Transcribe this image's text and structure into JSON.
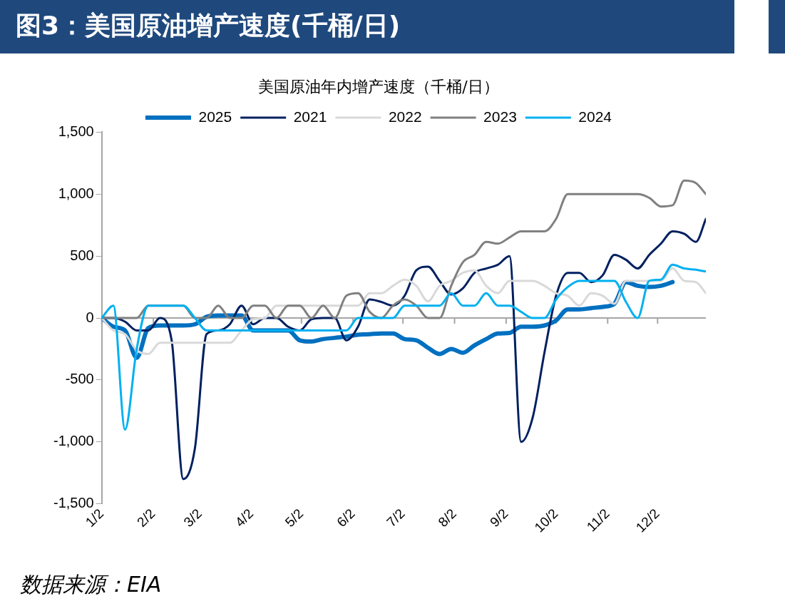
{
  "chart_data": {
    "type": "line",
    "title": "图3：美国原油增产速度(千桶/日)",
    "subtitle": "美国原油年内增产速度（千桶/日）",
    "x": [
      "--01-02",
      "--01-09",
      "--01-16",
      "--01-23",
      "--01-30",
      "--02-06",
      "--02-13",
      "--02-20",
      "--02-27",
      "--03-06",
      "--03-13",
      "--03-20",
      "--03-27",
      "--04-03",
      "--04-10",
      "--04-17",
      "--04-24",
      "--05-01",
      "--05-08",
      "--05-15",
      "--05-22",
      "--05-29",
      "--06-05",
      "--06-12",
      "--06-19",
      "--06-26",
      "--07-03",
      "--07-10",
      "--07-17",
      "--07-24",
      "--07-31",
      "--08-07",
      "--08-14",
      "--08-21",
      "--08-28",
      "--09-04",
      "--09-11",
      "--09-18",
      "--09-25",
      "--10-02",
      "--10-09",
      "--10-16",
      "--10-23",
      "--10-30",
      "--11-06",
      "--11-13",
      "--11-20",
      "--11-27",
      "--12-04",
      "--12-11",
      "--12-18",
      "--12-25",
      "--12-31"
    ],
    "series": [
      {
        "name": "2025",
        "color": "#0070c0",
        "values": [
          0,
          -70,
          -100,
          -320,
          -80,
          -60,
          -60,
          -60,
          -50,
          10,
          20,
          20,
          20,
          -100,
          -100,
          -100,
          -100,
          -180,
          -190,
          -170,
          -160,
          -150,
          -135,
          -130,
          -125,
          -125,
          -170,
          -180,
          -240,
          -290,
          -250,
          -280,
          -220,
          -170,
          -125,
          -120,
          -70,
          -70,
          -60,
          -20,
          70,
          70,
          80,
          90,
          115,
          290,
          260,
          250,
          260,
          290,
          null,
          null,
          null
        ]
      },
      {
        "name": "2021",
        "color": "#002060",
        "values": [
          0,
          0,
          -30,
          -100,
          -100,
          0,
          -180,
          -1300,
          -1050,
          -130,
          -100,
          -50,
          100,
          -50,
          0,
          0,
          -70,
          -100,
          -10,
          0,
          0,
          -180,
          -70,
          150,
          130,
          100,
          180,
          385,
          415,
          300,
          190,
          240,
          365,
          400,
          430,
          500,
          -1000,
          -800,
          -280,
          180,
          365,
          365,
          290,
          345,
          510,
          470,
          400,
          510,
          600,
          700,
          680,
          615,
          800
        ]
      },
      {
        "name": "2022",
        "color": "#d9d9d9",
        "values": [
          0,
          -100,
          -130,
          -260,
          -290,
          -200,
          -200,
          -200,
          -200,
          -200,
          -200,
          -200,
          -100,
          -10,
          0,
          100,
          100,
          100,
          100,
          100,
          100,
          100,
          100,
          200,
          200,
          260,
          310,
          260,
          135,
          260,
          300,
          365,
          385,
          260,
          200,
          300,
          300,
          300,
          260,
          200,
          180,
          100,
          200,
          180,
          115,
          300,
          300,
          300,
          300,
          400,
          300,
          290,
          200
        ]
      },
      {
        "name": "2023",
        "color": "#808080",
        "values": [
          0,
          0,
          0,
          0,
          100,
          100,
          100,
          100,
          0,
          0,
          100,
          0,
          0,
          100,
          100,
          0,
          100,
          100,
          0,
          100,
          0,
          180,
          200,
          50,
          0,
          100,
          150,
          100,
          0,
          0,
          260,
          450,
          510,
          615,
          600,
          650,
          700,
          700,
          700,
          800,
          1000,
          1000,
          1000,
          1000,
          1000,
          1000,
          1000,
          970,
          900,
          910,
          1110,
          1090,
          1000
        ]
      },
      {
        "name": "2024",
        "color": "#00b0f0",
        "values": [
          0,
          100,
          -900,
          -250,
          100,
          100,
          100,
          100,
          0,
          -100,
          -100,
          -100,
          -100,
          -100,
          -100,
          -100,
          -100,
          -100,
          -100,
          -100,
          -100,
          -100,
          0,
          0,
          0,
          0,
          100,
          100,
          100,
          100,
          200,
          100,
          100,
          200,
          100,
          100,
          50,
          0,
          0,
          150,
          250,
          300,
          300,
          300,
          300,
          130,
          0,
          300,
          310,
          430,
          400,
          390,
          375
        ]
      }
    ],
    "xlim": [
      "--01-02",
      "--12-31"
    ],
    "xticks": [
      {
        "value": "--01-02",
        "label": "1/2"
      },
      {
        "value": "--02-02",
        "label": "2/2"
      },
      {
        "value": "--03-02",
        "label": "3/2"
      },
      {
        "value": "--04-02",
        "label": "4/2"
      },
      {
        "value": "--05-02",
        "label": "5/2"
      },
      {
        "value": "--06-02",
        "label": "6/2"
      },
      {
        "value": "--07-02",
        "label": "7/2"
      },
      {
        "value": "--08-02",
        "label": "8/2"
      },
      {
        "value": "--09-02",
        "label": "9/2"
      },
      {
        "value": "--10-02",
        "label": "10/2"
      },
      {
        "value": "--11-02",
        "label": "11/2"
      },
      {
        "value": "--12-02",
        "label": "12/2"
      }
    ],
    "ylim": [
      -1500,
      1500
    ],
    "yticks": [
      {
        "value": -1500,
        "label": "-1,500"
      },
      {
        "value": -1000,
        "label": "-1,000"
      },
      {
        "value": -500,
        "label": "-500"
      },
      0,
      {
        "value": 500,
        "label": "500"
      },
      {
        "value": 1000,
        "label": "1,000"
      },
      {
        "value": 1500,
        "label": "1,500"
      }
    ],
    "legend": "top",
    "marker": "none",
    "line_style": "solid",
    "annotations": [
      "数据来源：EIA"
    ]
  }
}
